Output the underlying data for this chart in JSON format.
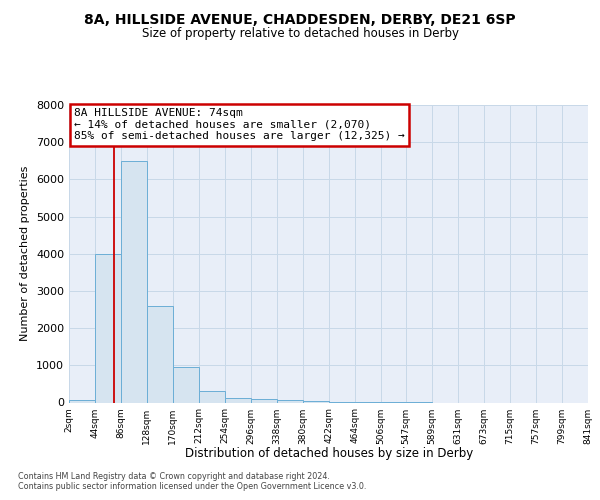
{
  "title": "8A, HILLSIDE AVENUE, CHADDESDEN, DERBY, DE21 6SP",
  "subtitle": "Size of property relative to detached houses in Derby",
  "xlabel": "Distribution of detached houses by size in Derby",
  "ylabel": "Number of detached properties",
  "bar_values": [
    80,
    4000,
    6500,
    2600,
    950,
    300,
    120,
    100,
    80,
    30,
    10,
    5,
    2,
    1,
    0,
    0,
    0,
    0,
    0,
    0
  ],
  "bin_edges": [
    2,
    44,
    86,
    128,
    170,
    212,
    254,
    296,
    338,
    380,
    422,
    464,
    506,
    547,
    589,
    631,
    673,
    715,
    757,
    799,
    841
  ],
  "tick_labels": [
    "2sqm",
    "44sqm",
    "86sqm",
    "128sqm",
    "170sqm",
    "212sqm",
    "254sqm",
    "296sqm",
    "338sqm",
    "380sqm",
    "422sqm",
    "464sqm",
    "506sqm",
    "547sqm",
    "589sqm",
    "631sqm",
    "673sqm",
    "715sqm",
    "757sqm",
    "799sqm",
    "841sqm"
  ],
  "bar_color": "#d6e4f0",
  "bar_edge_color": "#6baed6",
  "grid_color": "#c8d8e8",
  "background_color": "#e8eef8",
  "ylim": [
    0,
    8000
  ],
  "yticks": [
    0,
    1000,
    2000,
    3000,
    4000,
    5000,
    6000,
    7000,
    8000
  ],
  "property_size": 74,
  "annotation_title": "8A HILLSIDE AVENUE: 74sqm",
  "annotation_line1": "← 14% of detached houses are smaller (2,070)",
  "annotation_line2": "85% of semi-detached houses are larger (12,325) →",
  "annotation_box_color": "#cc0000",
  "vline_color": "#cc0000",
  "footer_line1": "Contains HM Land Registry data © Crown copyright and database right 2024.",
  "footer_line2": "Contains public sector information licensed under the Open Government Licence v3.0."
}
